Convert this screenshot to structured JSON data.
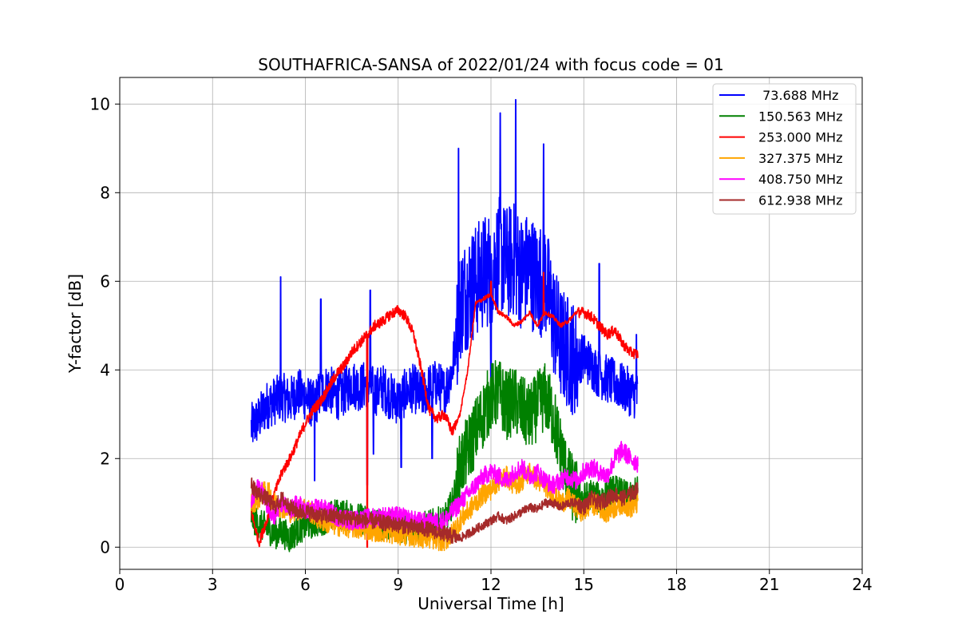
{
  "chart_data": {
    "type": "line",
    "title": "SOUTHAFRICA-SANSA of 2022/01/24 with focus code = 01",
    "xlabel": "Universal Time [h]",
    "ylabel": "Y-factor [dB]",
    "xlim": [
      0,
      24
    ],
    "ylim": [
      -0.5,
      10.6
    ],
    "xticks": [
      0,
      3,
      6,
      9,
      12,
      15,
      18,
      21,
      24
    ],
    "yticks": [
      0,
      2,
      4,
      6,
      8,
      10
    ],
    "grid": true,
    "legend_position": "top-right",
    "series": [
      {
        "name": " 73.688 MHz",
        "color": "#0000ff",
        "x": [
          4.25,
          4.5,
          4.75,
          5.0,
          5.25,
          5.5,
          5.75,
          6.0,
          6.25,
          6.5,
          6.75,
          7.0,
          7.25,
          7.5,
          7.75,
          8.0,
          8.25,
          8.5,
          8.75,
          9.0,
          9.25,
          9.5,
          9.75,
          10.0,
          10.25,
          10.5,
          10.75,
          11.0,
          11.25,
          11.5,
          11.75,
          12.0,
          12.25,
          12.5,
          12.75,
          13.0,
          13.25,
          13.5,
          13.75,
          14.0,
          14.25,
          14.5,
          14.75,
          15.0,
          15.25,
          15.5,
          15.75,
          16.0,
          16.25,
          16.5,
          16.75
        ],
        "y": [
          2.7,
          2.9,
          3.2,
          3.3,
          3.4,
          3.3,
          3.5,
          3.4,
          3.2,
          3.5,
          3.6,
          3.4,
          3.5,
          3.7,
          3.6,
          3.7,
          3.5,
          3.6,
          3.4,
          3.3,
          3.5,
          3.6,
          3.4,
          3.6,
          3.7,
          3.5,
          4.0,
          5.5,
          5.8,
          6.0,
          6.2,
          6.3,
          6.6,
          6.4,
          6.5,
          6.2,
          6.3,
          6.0,
          6.1,
          5.2,
          4.6,
          4.4,
          4.2,
          4.3,
          4.1,
          3.9,
          3.8,
          3.7,
          3.6,
          3.5,
          3.4
        ],
        "peaks": [
          [
            5.2,
            6.1
          ],
          [
            6.5,
            5.6
          ],
          [
            8.1,
            5.8
          ],
          [
            10.95,
            9.0
          ],
          [
            12.3,
            9.8
          ],
          [
            12.8,
            10.1
          ],
          [
            13.7,
            9.1
          ],
          [
            15.5,
            6.4
          ],
          [
            16.7,
            4.8
          ]
        ],
        "dips": [
          [
            6.3,
            1.5
          ],
          [
            8.0,
            1.4
          ],
          [
            8.2,
            2.1
          ],
          [
            9.1,
            1.8
          ],
          [
            10.1,
            2.0
          ],
          [
            12.0,
            3.6
          ]
        ]
      },
      {
        "name": "150.563 MHz",
        "color": "#008000",
        "x": [
          4.25,
          4.5,
          4.75,
          5.0,
          5.25,
          5.5,
          5.75,
          6.0,
          6.5,
          7.0,
          7.5,
          8.0,
          8.5,
          9.0,
          9.5,
          10.0,
          10.5,
          10.75,
          11.0,
          11.25,
          11.5,
          11.75,
          12.0,
          12.25,
          12.5,
          12.75,
          13.0,
          13.25,
          13.5,
          13.75,
          14.0,
          14.25,
          14.5,
          14.75,
          15.0,
          15.25,
          15.5,
          15.75,
          16.0,
          16.25,
          16.5,
          16.75
        ],
        "y": [
          0.7,
          0.5,
          0.45,
          0.3,
          0.35,
          0.2,
          0.4,
          0.5,
          0.6,
          0.75,
          0.7,
          0.6,
          0.5,
          0.45,
          0.4,
          0.5,
          0.6,
          1.0,
          1.8,
          2.2,
          2.6,
          3.0,
          3.4,
          3.5,
          3.2,
          3.3,
          3.1,
          2.9,
          3.2,
          3.4,
          3.0,
          2.2,
          1.5,
          1.2,
          1.1,
          1.2,
          1.1,
          1.2,
          1.3,
          1.2,
          1.1,
          1.3
        ]
      },
      {
        "name": "253.000 MHz",
        "color": "#ff0000",
        "x": [
          4.25,
          4.5,
          4.75,
          5.0,
          5.25,
          5.5,
          5.75,
          6.0,
          6.25,
          6.5,
          6.75,
          7.0,
          7.25,
          7.5,
          7.75,
          8.0,
          8.25,
          8.5,
          8.75,
          9.0,
          9.25,
          9.5,
          9.75,
          10.0,
          10.25,
          10.5,
          10.75,
          11.0,
          11.25,
          11.5,
          11.75,
          12.0,
          12.25,
          12.5,
          12.75,
          13.0,
          13.25,
          13.5,
          13.75,
          14.0,
          14.25,
          14.5,
          14.75,
          15.0,
          15.25,
          15.5,
          15.75,
          16.0,
          16.25,
          16.5,
          16.75
        ],
        "y": [
          0.8,
          0.1,
          0.6,
          1.2,
          1.7,
          2.0,
          2.4,
          2.8,
          3.1,
          3.3,
          3.6,
          3.9,
          4.1,
          4.4,
          4.6,
          4.8,
          5.0,
          5.1,
          5.25,
          5.35,
          5.2,
          4.8,
          4.0,
          3.1,
          2.9,
          3.0,
          2.6,
          3.0,
          4.0,
          5.5,
          5.6,
          5.7,
          5.3,
          5.2,
          5.0,
          5.1,
          5.3,
          5.0,
          5.3,
          5.2,
          5.0,
          5.1,
          5.3,
          5.3,
          5.2,
          5.0,
          4.8,
          4.9,
          4.6,
          4.4,
          4.35
        ],
        "peaks": [
          [
            8.0,
            0.0
          ],
          [
            12.0,
            6.0
          ],
          [
            13.7,
            6.2
          ]
        ]
      },
      {
        "name": "327.375 MHz",
        "color": "#ffa500",
        "x": [
          4.25,
          4.5,
          4.75,
          5.0,
          5.5,
          6.0,
          6.5,
          7.0,
          7.5,
          8.0,
          8.5,
          9.0,
          9.5,
          10.0,
          10.5,
          10.75,
          11.0,
          11.25,
          11.5,
          11.75,
          12.0,
          12.25,
          12.5,
          12.75,
          13.0,
          13.25,
          13.5,
          13.75,
          14.0,
          14.25,
          14.5,
          14.75,
          15.0,
          15.25,
          15.5,
          15.75,
          16.0,
          16.25,
          16.5,
          16.75
        ],
        "y": [
          1.0,
          1.1,
          1.3,
          1.0,
          0.8,
          0.9,
          0.6,
          0.5,
          0.45,
          0.4,
          0.35,
          0.3,
          0.25,
          0.2,
          0.15,
          0.3,
          0.6,
          0.8,
          1.0,
          1.2,
          1.3,
          1.5,
          1.6,
          1.4,
          1.5,
          1.7,
          1.5,
          1.4,
          1.2,
          1.0,
          1.1,
          0.9,
          0.8,
          1.0,
          0.9,
          0.8,
          0.9,
          1.0,
          0.9,
          1.0
        ]
      },
      {
        "name": "408.750 MHz",
        "color": "#ff00ff",
        "x": [
          4.25,
          4.5,
          4.75,
          5.0,
          5.25,
          5.5,
          5.75,
          6.0,
          6.5,
          7.0,
          7.5,
          8.0,
          8.5,
          9.0,
          9.5,
          10.0,
          10.5,
          10.75,
          11.0,
          11.25,
          11.5,
          11.75,
          12.0,
          12.25,
          12.5,
          12.75,
          13.0,
          13.25,
          13.5,
          13.75,
          14.0,
          14.25,
          14.5,
          14.75,
          15.0,
          15.25,
          15.5,
          15.75,
          16.0,
          16.25,
          16.5,
          16.75
        ],
        "y": [
          1.0,
          1.4,
          1.0,
          0.7,
          1.0,
          0.8,
          1.0,
          0.8,
          0.9,
          0.7,
          0.6,
          0.65,
          0.7,
          0.7,
          0.6,
          0.55,
          0.6,
          0.8,
          1.0,
          1.2,
          1.4,
          1.6,
          1.7,
          1.6,
          1.5,
          1.7,
          1.8,
          1.6,
          1.7,
          1.5,
          1.4,
          1.5,
          1.6,
          1.5,
          1.7,
          1.8,
          1.7,
          1.6,
          2.0,
          2.2,
          2.0,
          1.9
        ]
      },
      {
        "name": "612.938 MHz",
        "color": "#a52a2a",
        "x": [
          4.25,
          4.5,
          4.75,
          5.0,
          5.25,
          5.5,
          5.75,
          6.0,
          6.5,
          7.0,
          7.5,
          8.0,
          8.5,
          9.0,
          9.5,
          10.0,
          10.5,
          11.0,
          11.25,
          11.5,
          11.75,
          12.0,
          12.25,
          12.5,
          12.75,
          13.0,
          13.25,
          13.5,
          13.75,
          14.0,
          14.25,
          14.5,
          14.75,
          15.0,
          15.25,
          15.5,
          15.75,
          16.0,
          16.25,
          16.5,
          16.75
        ],
        "y": [
          1.4,
          1.2,
          1.1,
          0.9,
          1.1,
          0.9,
          0.8,
          0.8,
          0.7,
          0.7,
          0.65,
          0.6,
          0.55,
          0.5,
          0.45,
          0.4,
          0.3,
          0.2,
          0.3,
          0.4,
          0.5,
          0.6,
          0.7,
          0.6,
          0.7,
          0.8,
          0.9,
          0.85,
          1.0,
          1.0,
          0.9,
          1.0,
          1.0,
          0.9,
          1.1,
          1.0,
          1.1,
          1.2,
          1.1,
          1.2,
          1.3
        ]
      }
    ]
  }
}
